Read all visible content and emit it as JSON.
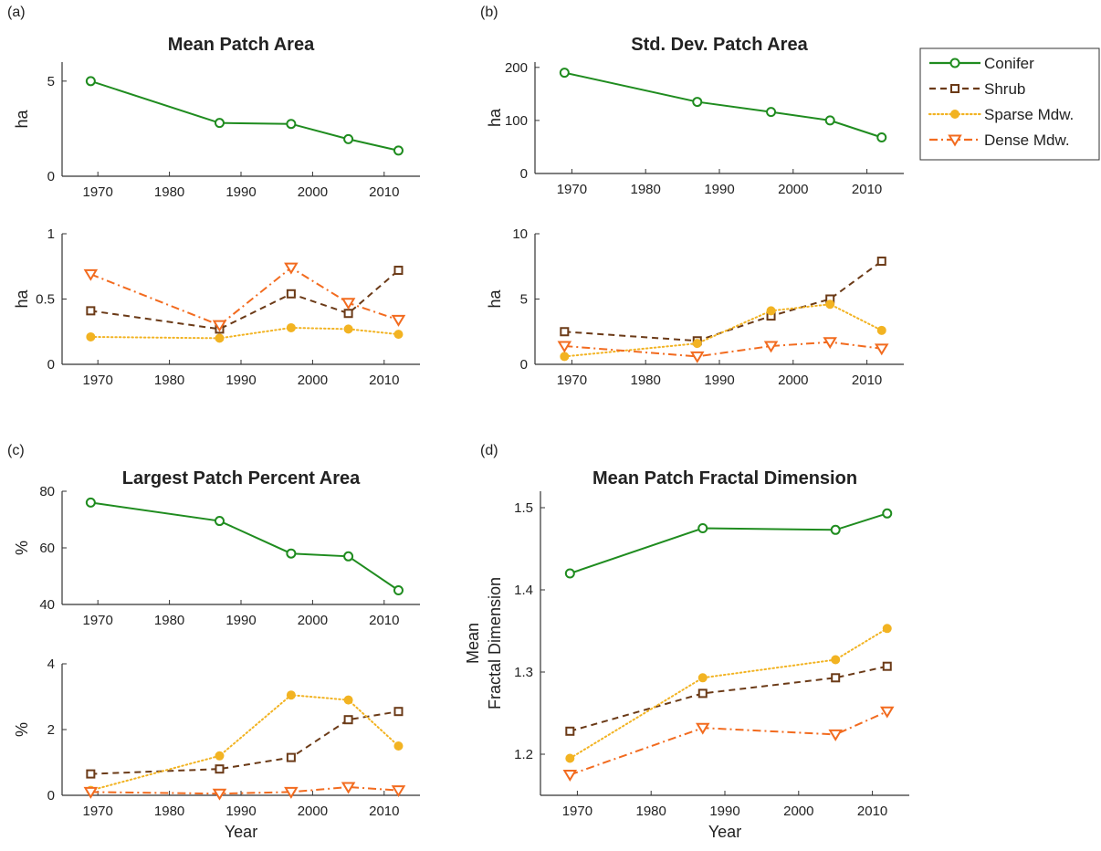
{
  "panel_letters": [
    "(a)",
    "(b)",
    "(c)",
    "(d)"
  ],
  "legend": [
    {
      "name": "Conifer",
      "color": "#1f8c1f",
      "dash": "solid",
      "marker": "circle"
    },
    {
      "name": "Shrub",
      "color": "#6b3a17",
      "dash": "dashed",
      "marker": "square"
    },
    {
      "name": "Sparse Mdw.",
      "color": "#f2b322",
      "dash": "dotted",
      "marker": "filled-circle"
    },
    {
      "name": "Dense Mdw.",
      "color": "#f26b1f",
      "dash": "dashdot",
      "marker": "triangle-down"
    }
  ],
  "chart_data": [
    {
      "type": "line",
      "title": "Mean Patch Area",
      "xlabel": "",
      "ylabel": "ha",
      "xlim": [
        1965,
        2015
      ],
      "ylim": [
        0,
        6
      ],
      "xticks": [
        1970,
        1980,
        1990,
        2000,
        2010
      ],
      "yticks": [
        0,
        5
      ],
      "series": [
        {
          "name": "Conifer",
          "x": [
            1969,
            1987,
            1997,
            2005,
            2012
          ],
          "values": [
            5.0,
            2.8,
            2.75,
            1.95,
            1.35
          ]
        }
      ]
    },
    {
      "type": "line",
      "title": "",
      "xlabel": "",
      "ylabel": "ha",
      "xlim": [
        1965,
        2015
      ],
      "ylim": [
        0,
        1
      ],
      "xticks": [
        1970,
        1980,
        1990,
        2000,
        2010
      ],
      "yticks": [
        0,
        0.5,
        1
      ],
      "series": [
        {
          "name": "Shrub",
          "x": [
            1969,
            1987,
            1997,
            2005,
            2012
          ],
          "values": [
            0.41,
            0.27,
            0.54,
            0.39,
            0.72
          ]
        },
        {
          "name": "Sparse Mdw.",
          "x": [
            1969,
            1987,
            1997,
            2005,
            2012
          ],
          "values": [
            0.21,
            0.2,
            0.28,
            0.27,
            0.23
          ]
        },
        {
          "name": "Dense Mdw.",
          "x": [
            1969,
            1987,
            1997,
            2005,
            2012
          ],
          "values": [
            0.69,
            0.3,
            0.74,
            0.47,
            0.34
          ]
        }
      ]
    },
    {
      "type": "line",
      "title": "Std. Dev. Patch Area",
      "xlabel": "",
      "ylabel": "ha",
      "xlim": [
        1965,
        2015
      ],
      "ylim": [
        0,
        210
      ],
      "xticks": [
        1970,
        1980,
        1990,
        2000,
        2010
      ],
      "yticks": [
        0,
        100,
        200
      ],
      "series": [
        {
          "name": "Conifer",
          "x": [
            1969,
            1987,
            1997,
            2005,
            2012
          ],
          "values": [
            190,
            135,
            116,
            100,
            68
          ]
        }
      ]
    },
    {
      "type": "line",
      "title": "",
      "xlabel": "",
      "ylabel": "ha",
      "xlim": [
        1965,
        2015
      ],
      "ylim": [
        0,
        10
      ],
      "xticks": [
        1970,
        1980,
        1990,
        2000,
        2010
      ],
      "yticks": [
        0,
        5,
        10
      ],
      "series": [
        {
          "name": "Shrub",
          "x": [
            1969,
            1987,
            1997,
            2005,
            2012
          ],
          "values": [
            2.5,
            1.8,
            3.7,
            5.0,
            7.9
          ]
        },
        {
          "name": "Sparse Mdw.",
          "x": [
            1969,
            1987,
            1997,
            2005,
            2012
          ],
          "values": [
            0.6,
            1.6,
            4.1,
            4.6,
            2.6
          ]
        },
        {
          "name": "Dense Mdw.",
          "x": [
            1969,
            1987,
            1997,
            2005,
            2012
          ],
          "values": [
            1.4,
            0.6,
            1.4,
            1.7,
            1.2
          ]
        }
      ]
    },
    {
      "type": "line",
      "title": "Largest Patch Percent Area",
      "xlabel": "",
      "ylabel": "%",
      "xlim": [
        1965,
        2015
      ],
      "ylim": [
        40,
        80
      ],
      "xticks": [
        1970,
        1980,
        1990,
        2000,
        2010
      ],
      "yticks": [
        40,
        60,
        80
      ],
      "series": [
        {
          "name": "Conifer",
          "x": [
            1969,
            1987,
            1997,
            2005,
            2012
          ],
          "values": [
            76,
            69.5,
            58,
            57,
            45
          ]
        }
      ]
    },
    {
      "type": "line",
      "title": "",
      "xlabel": "Year",
      "ylabel": "%",
      "xlim": [
        1965,
        2015
      ],
      "ylim": [
        0,
        4
      ],
      "xticks": [
        1970,
        1980,
        1990,
        2000,
        2010
      ],
      "yticks": [
        0,
        2,
        4
      ],
      "series": [
        {
          "name": "Shrub",
          "x": [
            1969,
            1987,
            1997,
            2005,
            2012
          ],
          "values": [
            0.65,
            0.8,
            1.15,
            2.3,
            2.55
          ]
        },
        {
          "name": "Sparse Mdw.",
          "x": [
            1969,
            1987,
            1997,
            2005,
            2012
          ],
          "values": [
            0.15,
            1.2,
            3.05,
            2.9,
            1.5
          ]
        },
        {
          "name": "Dense Mdw.",
          "x": [
            1969,
            1987,
            1997,
            2005,
            2012
          ],
          "values": [
            0.1,
            0.05,
            0.1,
            0.25,
            0.15
          ]
        }
      ]
    },
    {
      "type": "line",
      "title": "Mean Patch Fractal Dimension",
      "xlabel": "Year",
      "ylabel": "Mean Fractal Dimension",
      "xlim": [
        1965,
        2015
      ],
      "ylim": [
        1.15,
        1.52
      ],
      "xticks": [
        1970,
        1980,
        1990,
        2000,
        2010
      ],
      "yticks": [
        1.2,
        1.3,
        1.4,
        1.5
      ],
      "series": [
        {
          "name": "Conifer",
          "x": [
            1969,
            1987,
            2005,
            2012
          ],
          "values": [
            1.42,
            1.475,
            1.473,
            1.493
          ]
        },
        {
          "name": "Shrub",
          "x": [
            1969,
            1987,
            2005,
            2012
          ],
          "values": [
            1.228,
            1.274,
            1.293,
            1.307
          ]
        },
        {
          "name": "Sparse Mdw.",
          "x": [
            1969,
            1987,
            2005,
            2012
          ],
          "values": [
            1.195,
            1.293,
            1.315,
            1.353
          ]
        },
        {
          "name": "Dense Mdw.",
          "x": [
            1969,
            1987,
            2005,
            2012
          ],
          "values": [
            1.175,
            1.232,
            1.224,
            1.252
          ]
        }
      ]
    }
  ]
}
